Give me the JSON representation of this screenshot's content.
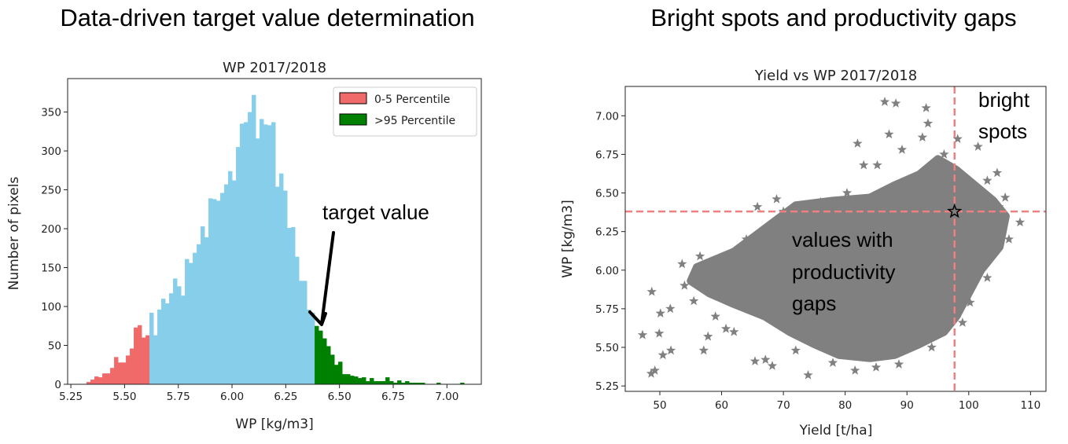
{
  "headings": {
    "left": "Data-driven target value determination",
    "right": "Bright spots and productivity gaps"
  },
  "chart_data": [
    {
      "type": "bar",
      "subtype": "histogram",
      "title": "WP 2017/2018",
      "xlabel": "WP [kg/m3]",
      "ylabel": "Number of pixels",
      "xlim": [
        5.235,
        7.16
      ],
      "ylim": [
        0,
        393
      ],
      "xticks": [
        "5.25",
        "5.50",
        "5.75",
        "6.00",
        "6.25",
        "6.50",
        "6.75",
        "7.00"
      ],
      "yticks": [
        "0",
        "50",
        "100",
        "150",
        "200",
        "250",
        "300",
        "350"
      ],
      "bin_start": 5.323,
      "bin_width": 0.0183,
      "counts": [
        3,
        6,
        10,
        9,
        14,
        14,
        21,
        35,
        28,
        28,
        37,
        46,
        73,
        76,
        60,
        63,
        92,
        63,
        96,
        110,
        104,
        117,
        136,
        126,
        114,
        161,
        156,
        169,
        180,
        203,
        189,
        239,
        238,
        236,
        246,
        257,
        274,
        262,
        305,
        335,
        337,
        350,
        372,
        316,
        341,
        334,
        333,
        337,
        254,
        271,
        249,
        201,
        202,
        164,
        133,
        133,
        96,
        92,
        75,
        69,
        59,
        49,
        38,
        25,
        29,
        13,
        13,
        11,
        10,
        8,
        9,
        4,
        8,
        4,
        4,
        4,
        9,
        4,
        2,
        5,
        2,
        4,
        2,
        2,
        2,
        2,
        0,
        0,
        0,
        2,
        0,
        0,
        0,
        0,
        0,
        2
      ],
      "thresholds": {
        "low": 5.62,
        "high": 6.39
      },
      "colors": {
        "low": "#f06a6a",
        "mid": "#87ceeb",
        "high": "#008000"
      },
      "legend": {
        "position": "top-right",
        "items": [
          {
            "label": "0-5 Percentile",
            "color": "#f06a6a"
          },
          {
            "label": ">95 Percentile",
            "color": "#008000"
          }
        ]
      },
      "annotation": {
        "text": "target value",
        "points_to": [
          6.39,
          75
        ]
      }
    },
    {
      "type": "scatter",
      "title": "Yield vs WP 2017/2018",
      "xlabel": "Yield [t/ha]",
      "ylabel": "WP [kg/m3]",
      "xlim": [
        44.4,
        112.5
      ],
      "ylim": [
        5.215,
        7.19
      ],
      "xticks": [
        "50",
        "60",
        "70",
        "80",
        "90",
        "100",
        "110"
      ],
      "yticks": [
        "5.25",
        "5.50",
        "5.75",
        "6.00",
        "6.25",
        "6.50",
        "6.75",
        "7.00"
      ],
      "marker": "star",
      "color": "#808080",
      "dense_region": [
        [
          56,
          6.02
        ],
        [
          62,
          6.12
        ],
        [
          68,
          6.3
        ],
        [
          72,
          6.42
        ],
        [
          78,
          6.45
        ],
        [
          84,
          6.47
        ],
        [
          88,
          6.55
        ],
        [
          92,
          6.62
        ],
        [
          95,
          6.72
        ],
        [
          98,
          6.65
        ],
        [
          101,
          6.55
        ],
        [
          104,
          6.45
        ],
        [
          106,
          6.35
        ],
        [
          105,
          6.15
        ],
        [
          102,
          6.0
        ],
        [
          100,
          5.85
        ],
        [
          98,
          5.7
        ],
        [
          96,
          5.6
        ],
        [
          92,
          5.52
        ],
        [
          88,
          5.45
        ],
        [
          84,
          5.43
        ],
        [
          79,
          5.45
        ],
        [
          75,
          5.52
        ],
        [
          71,
          5.6
        ],
        [
          67,
          5.7
        ],
        [
          62,
          5.78
        ],
        [
          58,
          5.85
        ],
        [
          55,
          5.93
        ]
      ],
      "points": [
        [
          86.4,
          7.09
        ],
        [
          88.2,
          7.08
        ],
        [
          93.1,
          7.05
        ],
        [
          93.4,
          6.95
        ],
        [
          87.1,
          6.88
        ],
        [
          82.0,
          6.82
        ],
        [
          83.0,
          6.68
        ],
        [
          85.2,
          6.68
        ],
        [
          68.9,
          6.46
        ],
        [
          65.8,
          6.41
        ],
        [
          48.7,
          5.86
        ],
        [
          47.2,
          5.58
        ],
        [
          49.9,
          5.59
        ],
        [
          48.6,
          5.33
        ],
        [
          49.2,
          5.35
        ],
        [
          50.5,
          5.45
        ],
        [
          51.8,
          5.48
        ],
        [
          50.1,
          5.72
        ],
        [
          51.7,
          5.75
        ],
        [
          53.6,
          6.04
        ],
        [
          56.5,
          6.09
        ],
        [
          57.8,
          5.57
        ],
        [
          57.1,
          5.48
        ],
        [
          60.7,
          5.62
        ],
        [
          65.4,
          5.41
        ],
        [
          67.1,
          5.42
        ],
        [
          68.2,
          5.38
        ],
        [
          108.3,
          6.31
        ],
        [
          105.9,
          6.47
        ],
        [
          104.6,
          6.63
        ],
        [
          98.2,
          6.85
        ],
        [
          101.5,
          6.8
        ],
        [
          100.2,
          5.79
        ],
        [
          98.3,
          5.72
        ],
        [
          93.8,
          5.59
        ],
        [
          80.3,
          6.5
        ],
        [
          89.2,
          6.78
        ],
        [
          92.5,
          6.86
        ],
        [
          104.9,
          6.41
        ],
        [
          100.7,
          6.03
        ],
        [
          88.7,
          5.39
        ],
        [
          74.0,
          5.32
        ],
        [
          81.6,
          5.35
        ],
        [
          54,
          5.9
        ],
        [
          55.5,
          5.8
        ],
        [
          59,
          5.7
        ],
        [
          62,
          5.6
        ],
        [
          64,
          6.2
        ],
        [
          70,
          6.38
        ],
        [
          76,
          6.44
        ],
        [
          96,
          6.75
        ],
        [
          103,
          6.58
        ],
        [
          106.5,
          6.2
        ],
        [
          103,
          5.95
        ],
        [
          99,
          5.66
        ],
        [
          94,
          5.5
        ],
        [
          85,
          5.37
        ],
        [
          78,
          5.4
        ],
        [
          72,
          5.48
        ]
      ],
      "highlight_point": [
        97.7,
        6.38
      ],
      "reference_lines": {
        "x": 97.7,
        "y": 6.38,
        "color": "#f08080"
      },
      "annotations": [
        {
          "text": [
            "bright",
            "spots"
          ]
        },
        {
          "text": [
            "values with",
            "productivity",
            "gaps"
          ]
        }
      ]
    }
  ]
}
